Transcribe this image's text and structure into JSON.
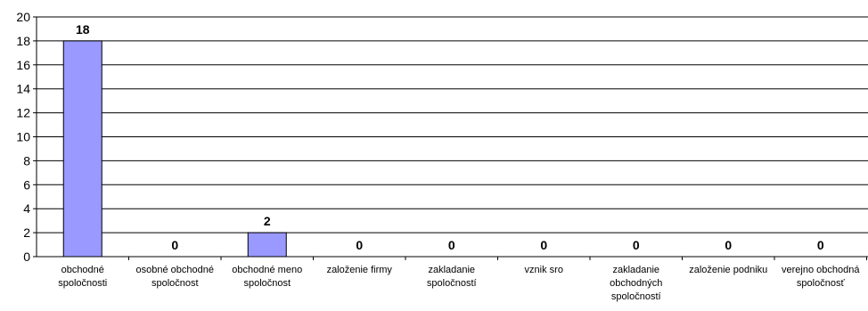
{
  "chart_data": {
    "type": "bar",
    "title": "",
    "xlabel": "",
    "ylabel": "",
    "ylim": [
      0,
      20
    ],
    "yticks": [
      0,
      2,
      4,
      6,
      8,
      10,
      12,
      14,
      16,
      18,
      20
    ],
    "grid": true,
    "legend": "none",
    "bar_color": "#9999ff",
    "bar_stroke": "#000000",
    "categories": [
      [
        "obchodné",
        "spoločnosti"
      ],
      [
        "osobné obchodné",
        "spoločnost"
      ],
      [
        "obchodné meno",
        "spoločnost"
      ],
      [
        "založenie firmy"
      ],
      [
        "zakladanie",
        "spoločností"
      ],
      [
        "vznik sro"
      ],
      [
        "zakladanie",
        "obchodných",
        "spoločností"
      ],
      [
        "založenie podniku"
      ],
      [
        "verejno obchodná",
        "spoločnosť"
      ]
    ],
    "values": [
      18,
      0,
      2,
      0,
      0,
      0,
      0,
      0,
      0
    ],
    "data_labels": [
      "18",
      "0",
      "2",
      "0",
      "0",
      "0",
      "0",
      "0",
      "0"
    ]
  }
}
